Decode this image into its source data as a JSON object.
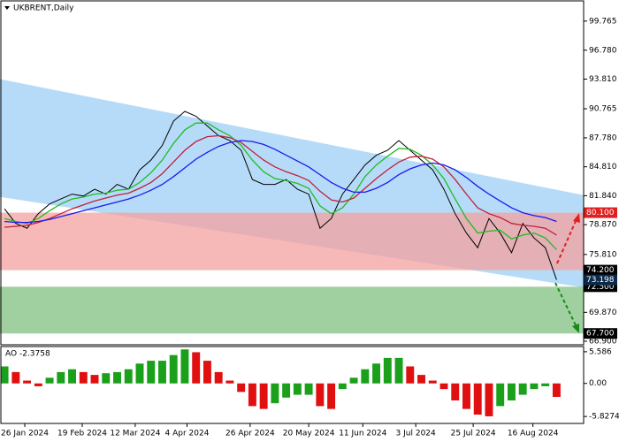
{
  "chart_data": [
    {
      "type": "line",
      "title": "UKBRENT,Daily",
      "x": [
        0,
        1,
        2,
        3,
        4,
        5,
        6,
        7,
        8,
        9,
        10,
        11,
        12,
        13,
        14,
        15,
        16,
        17,
        18,
        19,
        20,
        21,
        22,
        23,
        24,
        25,
        26,
        27,
        28,
        29,
        30,
        31,
        32,
        33,
        34,
        35,
        36,
        37,
        38,
        39,
        40,
        41,
        42,
        43,
        44,
        45,
        46,
        47,
        48,
        49
      ],
      "xlim": [
        -0.4,
        51.4
      ],
      "ylim": [
        66.54,
        101.75
      ],
      "yticks": [
        99.765,
        {
          "value": 96.78,
          "label": "96.780"
        },
        {
          "value": 93.81,
          "label": "93.810"
        },
        90.765,
        {
          "value": 87.78,
          "label": "87.780"
        },
        {
          "value": 84.81,
          "label": "84.810"
        },
        {
          "value": 81.84,
          "label": "81.840"
        },
        {
          "value": 78.87,
          "label": "78.870"
        },
        {
          "value": 75.81,
          "label": "75.810"
        },
        {
          "value": 69.87,
          "label": "69.870"
        },
        {
          "value": 66.9,
          "label": "66.900"
        }
      ],
      "series": [
        {
          "color": "#000000",
          "values": [
            80.5,
            79.0,
            78.5,
            80.0,
            81.0,
            81.5,
            82.0,
            81.8,
            82.5,
            82.0,
            83.0,
            82.5,
            84.5,
            85.5,
            87.0,
            89.5,
            90.5,
            90.0,
            89.0,
            88.0,
            87.5,
            86.5,
            83.5,
            83.0,
            83.0,
            83.5,
            82.5,
            82.0,
            78.5,
            79.5,
            82.0,
            83.5,
            85.0,
            86.0,
            86.5,
            87.5,
            86.5,
            85.5,
            84.5,
            82.5,
            80.0,
            78.0,
            76.5,
            79.5,
            78.0,
            76.0,
            79.0,
            77.5,
            76.5,
            73.198
          ]
        },
        {
          "color": "#22bb22",
          "values": [
            79.5,
            79.2,
            79.0,
            79.5,
            80.3,
            81.0,
            81.5,
            81.7,
            82.0,
            82.1,
            82.4,
            82.5,
            83.2,
            84.2,
            85.5,
            87.2,
            88.6,
            89.3,
            89.3,
            88.6,
            88.0,
            87.0,
            85.5,
            84.3,
            83.6,
            83.4,
            83.1,
            82.6,
            80.8,
            80.0,
            80.6,
            82.0,
            83.8,
            85.0,
            85.9,
            86.7,
            86.6,
            86.0,
            85.0,
            83.6,
            81.5,
            79.5,
            78.0,
            78.2,
            78.3,
            77.4,
            77.8,
            78.0,
            77.5,
            76.3
          ]
        },
        {
          "color": "#c0203a",
          "values": [
            78.6,
            78.7,
            78.8,
            79.1,
            79.5,
            80.0,
            80.5,
            80.9,
            81.3,
            81.6,
            81.9,
            82.1,
            82.6,
            83.2,
            84.1,
            85.3,
            86.5,
            87.4,
            87.9,
            88.0,
            87.8,
            87.3,
            86.4,
            85.5,
            84.8,
            84.3,
            83.9,
            83.4,
            82.3,
            81.4,
            81.2,
            81.6,
            82.6,
            83.6,
            84.5,
            85.3,
            85.8,
            85.9,
            85.6,
            84.8,
            83.5,
            82.0,
            80.6,
            80.0,
            79.6,
            79.0,
            78.8,
            78.7,
            78.5,
            77.8
          ]
        },
        {
          "color": "#1a1aee",
          "values": [
            79.2,
            79.1,
            79.1,
            79.2,
            79.4,
            79.7,
            80.0,
            80.3,
            80.6,
            80.9,
            81.2,
            81.5,
            81.9,
            82.4,
            83.0,
            83.8,
            84.7,
            85.6,
            86.3,
            86.9,
            87.3,
            87.5,
            87.4,
            87.1,
            86.6,
            86.0,
            85.4,
            84.8,
            84.0,
            83.2,
            82.6,
            82.2,
            82.2,
            82.6,
            83.2,
            84.0,
            84.6,
            85.0,
            85.2,
            85.0,
            84.5,
            83.7,
            82.8,
            82.0,
            81.3,
            80.6,
            80.1,
            79.8,
            79.6,
            79.2
          ]
        }
      ],
      "channel": {
        "x": [
          -0.4,
          51.4
        ],
        "upper": [
          93.81,
          81.9
        ],
        "lower": [
          81.72,
          72.42
        ],
        "color": "#a9d5f7"
      },
      "zones": [
        {
          "from": {
            "value": 80.1,
            "label": "80.100"
          },
          "to": {
            "value": 74.2,
            "label": "74.200"
          },
          "color": "#f4a0a0",
          "label_color": "#e02020"
        },
        {
          "from": {
            "value": 72.5,
            "label": "72.500"
          },
          "to": {
            "value": 67.7,
            "label": "67.700"
          },
          "color": "#80c080",
          "label_color": "#000000"
        }
      ],
      "last_price": 73.198
    },
    {
      "type": "bar",
      "title": "AO -2.3758",
      "x": [
        0,
        1,
        2,
        3,
        4,
        5,
        6,
        7,
        8,
        9,
        10,
        11,
        12,
        13,
        14,
        15,
        16,
        17,
        18,
        19,
        20,
        21,
        22,
        23,
        24,
        25,
        26,
        27,
        28,
        29,
        30,
        31,
        32,
        33,
        34,
        35,
        36,
        37,
        38,
        39,
        40,
        41,
        42,
        43,
        44,
        45,
        46,
        47,
        48,
        49
      ],
      "xlim": [
        -0.4,
        51.4
      ],
      "ylim": [
        -6.9,
        6.35
      ],
      "yticks": [
        5.586,
        {
          "value": 0,
          "label": "0.00"
        },
        -5.8274
      ],
      "xticks": [
        {
          "value": 1.8,
          "label": "26 Jan 2024"
        },
        {
          "value": 6.9,
          "label": "19 Feb 2024"
        },
        {
          "value": 11.6,
          "label": "12 Mar 2024"
        },
        {
          "value": 16.2,
          "label": "4 Apr 2024"
        },
        {
          "value": 21.8,
          "label": "26 Apr 2024"
        },
        {
          "value": 27,
          "label": "20 May 2024"
        },
        {
          "value": 31.8,
          "label": "11 Jun 2024"
        },
        {
          "value": 36.5,
          "label": "3 Jul 2024"
        },
        {
          "value": 41.6,
          "label": "25 Jul 2024"
        },
        {
          "value": 46.9,
          "label": "16 Aug 2024"
        }
      ],
      "values": [
        3,
        2,
        0.5,
        -0.5,
        1,
        2,
        2.5,
        2,
        1.5,
        1.8,
        2,
        2.5,
        3.5,
        4,
        4,
        5,
        6,
        5.5,
        4,
        2,
        0.5,
        -1.5,
        -4,
        -4.5,
        -3.5,
        -2.5,
        -2,
        -2,
        -4,
        -4.5,
        -1,
        1,
        2.5,
        3.5,
        4.5,
        4.5,
        3,
        1.5,
        0.5,
        -1,
        -3,
        -4.5,
        -5.5,
        -5.8,
        -4,
        -3,
        -2,
        -1,
        -0.5,
        -2.3758
      ],
      "up_color": "#1aa01a",
      "down_color": "#e01010"
    }
  ]
}
